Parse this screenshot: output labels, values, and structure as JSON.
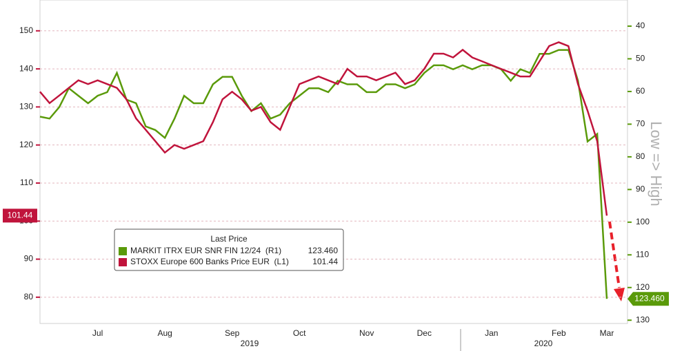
{
  "chart_data": {
    "type": "line",
    "categories": [
      null,
      null,
      null,
      null,
      null,
      null,
      "Jul",
      null,
      null,
      null,
      null,
      null,
      null,
      "Aug",
      null,
      null,
      null,
      null,
      null,
      null,
      "Sep",
      null,
      null,
      null,
      null,
      null,
      null,
      "Oct",
      null,
      null,
      null,
      null,
      null,
      null,
      "Nov",
      null,
      null,
      null,
      null,
      null,
      "Dec",
      null,
      null,
      null,
      null,
      null,
      null,
      "Jan",
      null,
      null,
      null,
      null,
      null,
      null,
      "Feb",
      null,
      null,
      null,
      null,
      "Mar"
    ],
    "years": [
      "2019",
      "2020"
    ],
    "series": [
      {
        "name": "MARKIT ITRX EUR SNR FIN 12/24  (R1)",
        "color": "#5a9a0a",
        "axis": "y2",
        "last_value_label": "123.460",
        "values": [
          67.7,
          68.3,
          64.8,
          59.0,
          61.3,
          63.6,
          61.3,
          60.2,
          54.3,
          62.5,
          63.6,
          70.7,
          71.8,
          74.2,
          68.3,
          61.3,
          63.6,
          63.6,
          57.8,
          55.5,
          55.5,
          61.3,
          66.0,
          63.6,
          68.3,
          67.1,
          63.6,
          61.3,
          59.0,
          59.0,
          60.2,
          56.7,
          57.8,
          57.8,
          60.2,
          60.2,
          57.8,
          57.8,
          59.0,
          57.8,
          54.3,
          52.0,
          52.0,
          53.2,
          52.0,
          53.2,
          52.0,
          52.0,
          53.2,
          56.7,
          53.2,
          54.3,
          48.5,
          48.5,
          47.3,
          47.3,
          56.7,
          75.3,
          73.0,
          123.46
        ]
      },
      {
        "name": "STOXX Europe 600 Banks Price EUR  (L1)",
        "color": "#c0143c",
        "axis": "y",
        "last_value_label": "101.44",
        "values": [
          134,
          131,
          133,
          135,
          137,
          136,
          137,
          136,
          135,
          132,
          127,
          124,
          121,
          118,
          120,
          119,
          120,
          121,
          126,
          132,
          134,
          132,
          129,
          130,
          126,
          124,
          130,
          136,
          137,
          138,
          137,
          136,
          140,
          138,
          138,
          137,
          138,
          139,
          136,
          137,
          140,
          144,
          144,
          143,
          145,
          143,
          142,
          141,
          140,
          139,
          138,
          138,
          142,
          146,
          147,
          146,
          136,
          129,
          121,
          101.44
        ]
      }
    ],
    "legend_title": "Last Price",
    "ylim": [
      73.1,
      158.1
    ],
    "yticks": [
      80,
      90,
      100,
      110,
      120,
      130,
      140,
      150
    ],
    "y2lim": [
      131,
      32
    ],
    "y2ticks": [
      40,
      50,
      60,
      70,
      80,
      90,
      100,
      110,
      120,
      130
    ],
    "y2label": "Low => High",
    "grid": true
  }
}
